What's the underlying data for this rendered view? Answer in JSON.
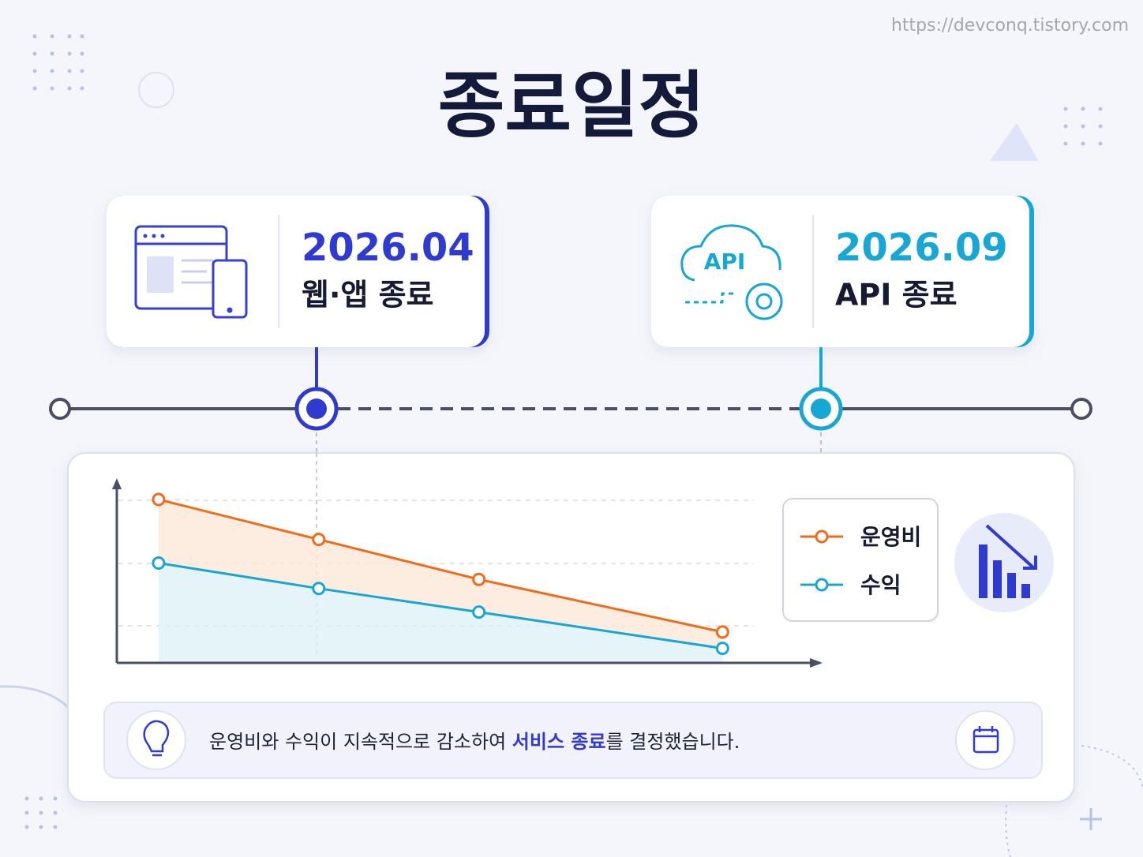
{
  "url": "https://devconq.tistory.com",
  "title": "종료일정",
  "milestones": [
    {
      "date": "2026.04",
      "label": "웹·앱 종료"
    },
    {
      "date": "2026.09",
      "label": "API 종료"
    }
  ],
  "api_icon_text": "API",
  "chart_data": {
    "type": "line",
    "x": [
      6,
      29,
      52,
      87
    ],
    "xlim": [
      0,
      100
    ],
    "ylim": [
      0,
      100
    ],
    "series": [
      {
        "name": "운영비",
        "color": "#f26a1b",
        "values": [
          90,
          68,
          46,
          17
        ]
      },
      {
        "name": "수익",
        "color": "#1aa6d2",
        "values": [
          55,
          41,
          28,
          8
        ]
      }
    ]
  },
  "note": {
    "before": "운영비와 수익이 지속적으로 감소하여 ",
    "highlight": "서비스 종료",
    "after": "를 결정했습니다."
  }
}
